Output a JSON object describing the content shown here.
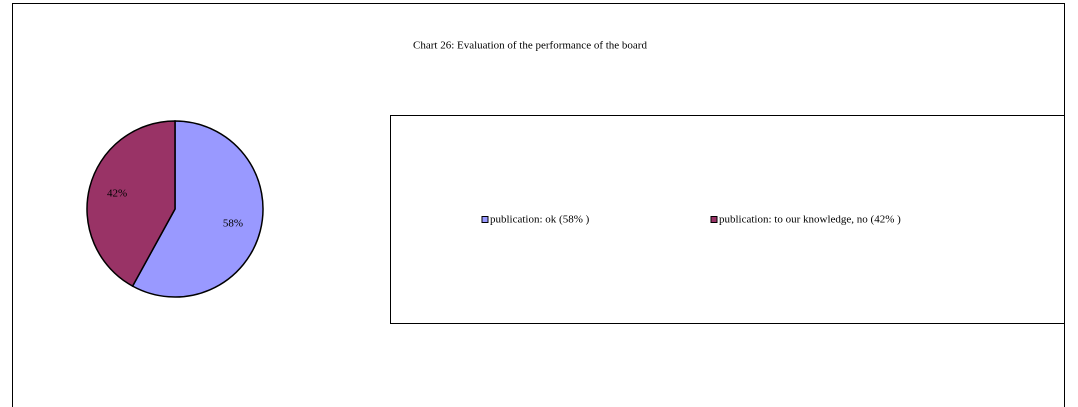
{
  "chart_data": {
    "type": "pie",
    "title": "Chart 26: Evaluation of the performance of the board",
    "categories": [
      "publication: ok (58% )",
      "publication: to our knowledge, no (42% )"
    ],
    "values": [
      58,
      42
    ],
    "value_labels": [
      "58%",
      "42%"
    ],
    "colors": [
      "#9999ff",
      "#993366"
    ],
    "legend": "right"
  }
}
